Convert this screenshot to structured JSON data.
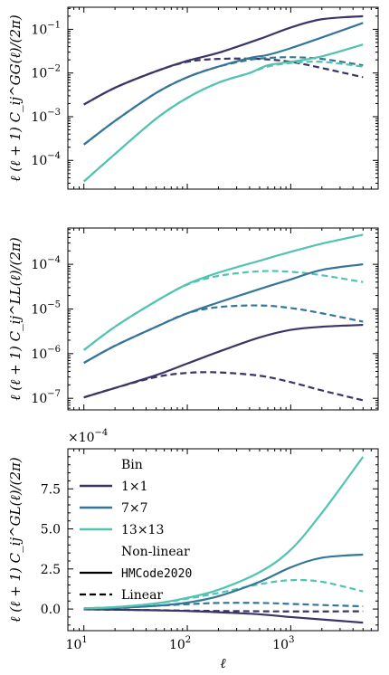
{
  "colors": {
    "bin_1x1": "#3b3566",
    "bin_7x7": "#34769a",
    "bin_13x13": "#52c3b0"
  },
  "chart_data": [
    {
      "type": "line",
      "ylabel": "ℓ (ℓ + 1) C_ij^GG(ℓ)/(2π)",
      "xscale": "log",
      "yscale": "log",
      "xlim": [
        7,
        7000
      ],
      "ylim": [
        2.2e-05,
        0.32
      ],
      "xticks": [
        "",
        "",
        ""
      ],
      "yticks": [
        "10^-1",
        "10^-2",
        "10^-3",
        "10^-4"
      ],
      "series": [
        {
          "bin": "1×1",
          "kind": "HMCode2020",
          "x": [
            10,
            20,
            50,
            100,
            200,
            500,
            1000,
            2000,
            5000
          ],
          "y": [
            0.0019,
            0.0046,
            0.011,
            0.019,
            0.029,
            0.06,
            0.11,
            0.17,
            0.2
          ]
        },
        {
          "bin": "1×1",
          "kind": "Linear",
          "x": [
            10,
            20,
            50,
            100,
            200,
            500,
            1000,
            2000,
            5000
          ],
          "y": [
            0.0019,
            0.0046,
            0.011,
            0.018,
            0.021,
            0.021,
            0.018,
            0.013,
            0.008
          ]
        },
        {
          "bin": "7×7",
          "kind": "HMCode2020",
          "x": [
            10,
            20,
            50,
            100,
            200,
            400,
            600,
            1000,
            2000,
            5000
          ],
          "y": [
            0.00023,
            0.0008,
            0.0035,
            0.008,
            0.014,
            0.022,
            0.026,
            0.037,
            0.065,
            0.14
          ]
        },
        {
          "bin": "7×7",
          "kind": "Linear",
          "x": [
            10,
            20,
            50,
            100,
            200,
            400,
            600,
            1000,
            2000,
            5000
          ],
          "y": [
            0.00023,
            0.0008,
            0.0035,
            0.008,
            0.014,
            0.02,
            0.022,
            0.023,
            0.021,
            0.015
          ]
        },
        {
          "bin": "13×13",
          "kind": "HMCode2020",
          "x": [
            10,
            20,
            50,
            100,
            200,
            400,
            600,
            1000,
            2000,
            5000
          ],
          "y": [
            3.3e-05,
            0.00014,
            0.0009,
            0.0027,
            0.006,
            0.01,
            0.015,
            0.018,
            0.024,
            0.045
          ]
        },
        {
          "bin": "13×13",
          "kind": "Linear",
          "x": [
            10,
            20,
            50,
            100,
            200,
            400,
            600,
            1000,
            2000,
            5000
          ],
          "y": [
            3.3e-05,
            0.00014,
            0.0009,
            0.0027,
            0.006,
            0.01,
            0.014,
            0.017,
            0.018,
            0.014
          ]
        }
      ]
    },
    {
      "type": "line",
      "ylabel": "ℓ (ℓ + 1) C_ij^LL(ℓ)/(2π)",
      "xscale": "log",
      "yscale": "log",
      "xlim": [
        7,
        7000
      ],
      "ylim": [
        5.5e-08,
        0.00065
      ],
      "xticks": [
        "",
        "",
        ""
      ],
      "yticks": [
        "10^-4",
        "10^-5",
        "10^-6",
        "10^-7"
      ],
      "series": [
        {
          "bin": "1×1",
          "kind": "HMCode2020",
          "x": [
            10,
            20,
            50,
            100,
            200,
            500,
            1000,
            2000,
            5000
          ],
          "y": [
            1.05e-07,
            1.7e-07,
            3.3e-07,
            6e-07,
            1.1e-06,
            2.3e-06,
            3.4e-06,
            4e-06,
            4.4e-06
          ]
        },
        {
          "bin": "1×1",
          "kind": "Linear",
          "x": [
            10,
            20,
            50,
            100,
            200,
            500,
            1000,
            2000,
            5000
          ],
          "y": [
            1.05e-07,
            1.7e-07,
            3e-07,
            3.7e-07,
            3.8e-07,
            3.2e-07,
            2.3e-07,
            1.5e-07,
            9e-08
          ]
        },
        {
          "bin": "7×7",
          "kind": "HMCode2020",
          "x": [
            10,
            20,
            50,
            100,
            200,
            500,
            1000,
            2000,
            5000
          ],
          "y": [
            6.2e-07,
            1.5e-06,
            4e-06,
            8e-06,
            1.4e-05,
            2.8e-05,
            4.6e-05,
            7.5e-05,
            0.0001
          ]
        },
        {
          "bin": "7×7",
          "kind": "Linear",
          "x": [
            10,
            20,
            50,
            100,
            200,
            500,
            1000,
            2000,
            5000
          ],
          "y": [
            6.2e-07,
            1.5e-06,
            4e-06,
            8e-06,
            1.1e-05,
            1.2e-05,
            1.05e-05,
            8e-06,
            5.2e-06
          ]
        },
        {
          "bin": "13×13",
          "kind": "HMCode2020",
          "x": [
            10,
            20,
            50,
            100,
            200,
            500,
            1000,
            2000,
            5000
          ],
          "y": [
            1.2e-06,
            4e-06,
            1.5e-05,
            3.6e-05,
            6.5e-05,
            0.00012,
            0.00019,
            0.00029,
            0.00046
          ]
        },
        {
          "bin": "13×13",
          "kind": "Linear",
          "x": [
            10,
            20,
            50,
            100,
            200,
            500,
            1000,
            2000,
            5000
          ],
          "y": [
            1.2e-06,
            4e-06,
            1.5e-05,
            3.5e-05,
            5.5e-05,
            7e-05,
            6.8e-05,
            5.7e-05,
            4e-05
          ]
        }
      ]
    },
    {
      "type": "line",
      "ylabel": "ℓ (ℓ + 1) C_ij^GL(ℓ)/(2π)",
      "xlabel": "ℓ",
      "xscale": "log",
      "yscale": "linear",
      "offset_text": "×10^−4",
      "xlim": [
        7,
        7000
      ],
      "ylim": [
        -1.35,
        10.0
      ],
      "xticks": [
        "10^1",
        "10^2",
        "10^3"
      ],
      "yticks": [
        "7.5",
        "5.0",
        "2.5",
        "0.0"
      ],
      "series": [
        {
          "bin": "1×1",
          "kind": "HMCode2020",
          "x": [
            10,
            20,
            50,
            100,
            200,
            500,
            1000,
            2000,
            5000
          ],
          "y": [
            -0.02,
            -0.04,
            -0.08,
            -0.12,
            -0.2,
            -0.33,
            -0.5,
            -0.65,
            -0.85
          ]
        },
        {
          "bin": "1×1",
          "kind": "Linear",
          "x": [
            10,
            20,
            50,
            100,
            200,
            500,
            1000,
            2000,
            5000
          ],
          "y": [
            -0.02,
            -0.04,
            -0.07,
            -0.1,
            -0.12,
            -0.14,
            -0.15,
            -0.15,
            -0.14
          ]
        },
        {
          "bin": "7×7",
          "kind": "HMCode2020",
          "x": [
            10,
            20,
            50,
            100,
            200,
            500,
            1000,
            2000,
            5000
          ],
          "y": [
            0.02,
            0.07,
            0.2,
            0.4,
            0.8,
            1.7,
            2.6,
            3.2,
            3.4
          ]
        },
        {
          "bin": "7×7",
          "kind": "Linear",
          "x": [
            10,
            20,
            50,
            100,
            200,
            500,
            1000,
            2000,
            5000
          ],
          "y": [
            0.02,
            0.07,
            0.2,
            0.3,
            0.38,
            0.38,
            0.32,
            0.25,
            0.17
          ]
        },
        {
          "bin": "13×13",
          "kind": "HMCode2020",
          "x": [
            10,
            20,
            50,
            100,
            200,
            500,
            1000,
            2000,
            5000
          ],
          "y": [
            0.05,
            0.12,
            0.35,
            0.7,
            1.2,
            2.3,
            3.7,
            6.0,
            9.5
          ]
        },
        {
          "bin": "13×13",
          "kind": "Linear",
          "x": [
            10,
            20,
            50,
            100,
            200,
            500,
            1000,
            2000,
            5000
          ],
          "y": [
            0.05,
            0.12,
            0.35,
            0.65,
            1.0,
            1.55,
            1.8,
            1.7,
            1.1
          ]
        }
      ]
    }
  ],
  "legend": {
    "bin_title": "Bin",
    "bins": [
      {
        "label": "1×1",
        "color_key": "bin_1x1"
      },
      {
        "label": "7×7",
        "color_key": "bin_7x7"
      },
      {
        "label": "13×13",
        "color_key": "bin_13x13"
      }
    ],
    "kind_title": "Non-linear",
    "kinds": [
      {
        "label": "HMCode2020",
        "dash": "solid"
      },
      {
        "label": "Linear",
        "dash": "dashed"
      }
    ]
  }
}
